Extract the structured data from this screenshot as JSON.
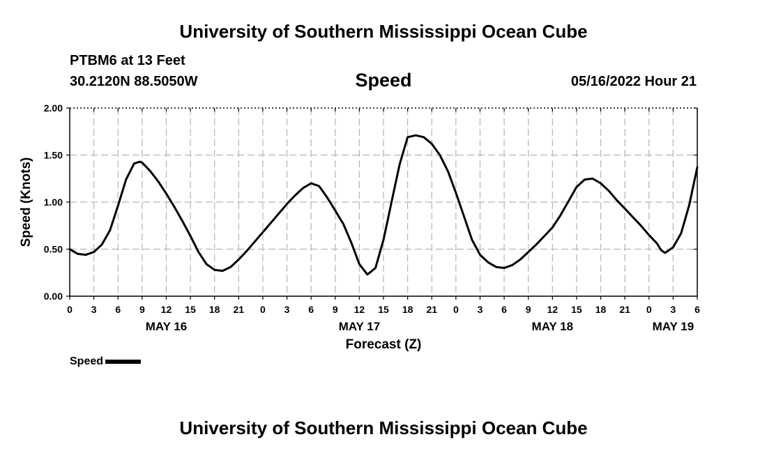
{
  "header": {
    "title": "University of Southern Mississippi Ocean Cube",
    "station": "PTBM6 at 13 Feet",
    "coordinates": "30.2120N  88.5050W",
    "datetime": "05/16/2022 Hour 21"
  },
  "footer": {
    "title": "University of Southern Mississippi Ocean Cube"
  },
  "legend": {
    "label": "Speed",
    "color": "#000000"
  },
  "chart_data": {
    "type": "line",
    "title": "Speed",
    "xlabel": "Forecast (Z)",
    "ylabel": "Speed (Knots)",
    "x_unit": "hours since May 16 00Z",
    "xlim": [
      0,
      78
    ],
    "ylim": [
      0,
      2
    ],
    "y_ticks": [
      0,
      0.5,
      1.0,
      1.5,
      2.0
    ],
    "y_tick_labels": [
      "0.00",
      "0.50",
      "1.00",
      "1.50",
      "2.00"
    ],
    "x_ticks": [
      0,
      3,
      6,
      9,
      12,
      15,
      18,
      21,
      24,
      27,
      30,
      33,
      36,
      39,
      42,
      45,
      48,
      51,
      54,
      57,
      60,
      63,
      66,
      69,
      72,
      75,
      78
    ],
    "x_tick_labels": [
      "0",
      "3",
      "6",
      "9",
      "12",
      "15",
      "18",
      "21",
      "0",
      "3",
      "6",
      "9",
      "12",
      "15",
      "18",
      "21",
      "0",
      "3",
      "6",
      "9",
      "12",
      "15",
      "18",
      "21",
      "0",
      "3",
      "6"
    ],
    "date_labels": [
      {
        "x": 12,
        "label": "MAY 16"
      },
      {
        "x": 36,
        "label": "MAY 17"
      },
      {
        "x": 60,
        "label": "MAY 18"
      },
      {
        "x": 75,
        "label": "MAY 19"
      }
    ],
    "grid": true,
    "series": [
      {
        "name": "Speed",
        "color": "#000000",
        "x": [
          0,
          1,
          2,
          3,
          4,
          5,
          6,
          7,
          8,
          8.7,
          9,
          10,
          11,
          12,
          13,
          14,
          15,
          16,
          17,
          18,
          19,
          20,
          21,
          22,
          23,
          24,
          25,
          26,
          27,
          28,
          29,
          30,
          31,
          32,
          33,
          33.7,
          34,
          35,
          36,
          37,
          38,
          39,
          39.5,
          40,
          41,
          42,
          43,
          44,
          45,
          46,
          47,
          48,
          49,
          50,
          51,
          52,
          53,
          54,
          55,
          56,
          57,
          58,
          59,
          60,
          61,
          62,
          63,
          64,
          65,
          66,
          67,
          68,
          69,
          70,
          71,
          72,
          73,
          73.5,
          74,
          75,
          76,
          77,
          78
        ],
        "values": [
          0.5,
          0.45,
          0.44,
          0.47,
          0.55,
          0.7,
          0.96,
          1.24,
          1.41,
          1.43,
          1.42,
          1.33,
          1.22,
          1.09,
          0.95,
          0.8,
          0.64,
          0.47,
          0.34,
          0.28,
          0.27,
          0.31,
          0.39,
          0.48,
          0.58,
          0.68,
          0.78,
          0.88,
          0.98,
          1.07,
          1.15,
          1.2,
          1.17,
          1.05,
          0.91,
          0.81,
          0.77,
          0.57,
          0.34,
          0.23,
          0.3,
          0.6,
          0.8,
          1.0,
          1.4,
          1.69,
          1.71,
          1.69,
          1.62,
          1.5,
          1.33,
          1.1,
          0.85,
          0.6,
          0.44,
          0.36,
          0.31,
          0.3,
          0.33,
          0.39,
          0.47,
          0.55,
          0.64,
          0.73,
          0.86,
          1.01,
          1.16,
          1.24,
          1.25,
          1.2,
          1.12,
          1.02,
          0.93,
          0.84,
          0.75,
          0.65,
          0.56,
          0.49,
          0.46,
          0.52,
          0.67,
          0.97,
          1.37
        ]
      }
    ]
  }
}
